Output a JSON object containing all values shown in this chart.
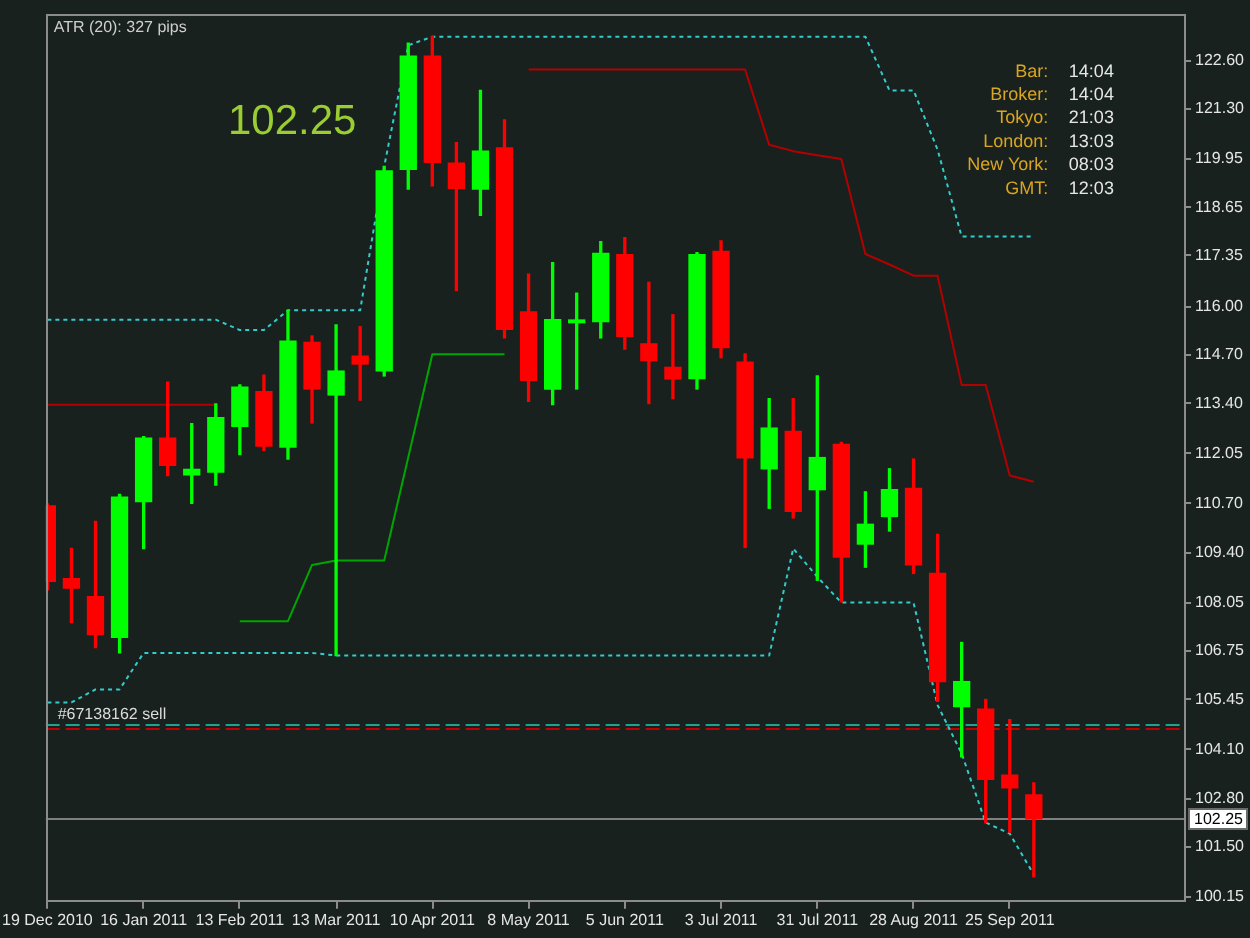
{
  "chart_data": {
    "type": "candlestick",
    "x": [
      "2010-12-19",
      "2010-12-26",
      "2011-01-02",
      "2011-01-09",
      "2011-01-16",
      "2011-01-23",
      "2011-01-30",
      "2011-02-06",
      "2011-02-13",
      "2011-02-20",
      "2011-02-27",
      "2011-03-06",
      "2011-03-13",
      "2011-03-20",
      "2011-03-27",
      "2011-04-03",
      "2011-04-10",
      "2011-04-17",
      "2011-04-24",
      "2011-05-01",
      "2011-05-08",
      "2011-05-15",
      "2011-05-22",
      "2011-05-29",
      "2011-06-05",
      "2011-06-12",
      "2011-06-19",
      "2011-06-26",
      "2011-07-03",
      "2011-07-10",
      "2011-07-17",
      "2011-07-24",
      "2011-07-31",
      "2011-08-07",
      "2011-08-14",
      "2011-08-21",
      "2011-08-28",
      "2011-09-04",
      "2011-09-11",
      "2011-09-18",
      "2011-09-25",
      "2011-10-02"
    ],
    "ohlc": [
      [
        110.64,
        110.7,
        108.39,
        108.62
      ],
      [
        108.69,
        109.5,
        107.51,
        108.44
      ],
      [
        108.21,
        110.23,
        106.84,
        107.19
      ],
      [
        107.12,
        110.95,
        106.7,
        110.88
      ],
      [
        110.76,
        112.5,
        109.5,
        112.46
      ],
      [
        112.46,
        113.96,
        111.46,
        111.73
      ],
      [
        111.48,
        112.85,
        110.71,
        111.62
      ],
      [
        111.55,
        113.38,
        111.2,
        113.01
      ],
      [
        112.78,
        113.89,
        112.02,
        113.83
      ],
      [
        113.71,
        114.15,
        112.13,
        112.25
      ],
      [
        112.22,
        115.89,
        111.9,
        115.06
      ],
      [
        115.03,
        115.2,
        112.87,
        113.78
      ],
      [
        113.62,
        115.5,
        106.63,
        114.26
      ],
      [
        114.66,
        115.45,
        113.48,
        114.45
      ],
      [
        114.27,
        119.75,
        114.13,
        119.63
      ],
      [
        119.67,
        123.06,
        119.14,
        122.71
      ],
      [
        122.71,
        123.23,
        119.23,
        119.86
      ],
      [
        119.84,
        120.39,
        116.42,
        119.16
      ],
      [
        119.14,
        121.79,
        118.44,
        120.16
      ],
      [
        120.25,
        121.0,
        115.15,
        115.38
      ],
      [
        115.85,
        116.86,
        113.45,
        114.01
      ],
      [
        113.78,
        117.17,
        113.36,
        115.64
      ],
      [
        115.56,
        116.35,
        113.78,
        115.63
      ],
      [
        115.59,
        117.73,
        115.15,
        117.42
      ],
      [
        117.38,
        117.84,
        114.85,
        115.19
      ],
      [
        114.99,
        116.64,
        113.39,
        114.54
      ],
      [
        114.36,
        115.77,
        113.52,
        114.05
      ],
      [
        114.06,
        117.44,
        113.78,
        117.38
      ],
      [
        117.47,
        117.75,
        114.62,
        114.89
      ],
      [
        114.5,
        114.72,
        109.53,
        111.93
      ],
      [
        111.64,
        113.52,
        110.58,
        112.73
      ],
      [
        112.64,
        113.52,
        110.32,
        110.5
      ],
      [
        111.08,
        114.13,
        108.65,
        111.94
      ],
      [
        112.29,
        112.35,
        108.07,
        109.27
      ],
      [
        109.62,
        111.02,
        109.0,
        110.15
      ],
      [
        110.36,
        111.64,
        109.97,
        111.08
      ],
      [
        111.11,
        111.9,
        108.83,
        109.06
      ],
      [
        108.83,
        109.88,
        105.4,
        105.93
      ],
      [
        105.26,
        106.98,
        103.91,
        105.93
      ],
      [
        105.19,
        105.45,
        102.15,
        103.31
      ],
      [
        103.42,
        104.91,
        101.89,
        103.08
      ],
      [
        102.89,
        103.21,
        100.69,
        102.25
      ]
    ],
    "colors": [
      "#ff0000",
      "#ff0000",
      "#ff0000",
      "#00ff00",
      "#00ff00",
      "#ff0000",
      "#00ff00",
      "#00ff00",
      "#00ff00",
      "#ff0000",
      "#00ff00",
      "#ff0000",
      "#00ff00",
      "#ff0000",
      "#00ff00",
      "#00ff00",
      "#ff0000",
      "#ff0000",
      "#00ff00",
      "#ff0000",
      "#ff0000",
      "#00ff00",
      "#00ff00",
      "#00ff00",
      "#ff0000",
      "#ff0000",
      "#ff0000",
      "#00ff00",
      "#ff0000",
      "#ff0000",
      "#00ff00",
      "#ff0000",
      "#00ff00",
      "#ff0000",
      "#00ff00",
      "#00ff00",
      "#ff0000",
      "#ff0000",
      "#00ff00",
      "#ff0000",
      "#ff0000",
      "#ff0000"
    ],
    "series": [
      {
        "type": "line",
        "color": "#33cccc",
        "line_style": "dotted",
        "values": [
          115.64,
          115.64,
          115.64,
          115.64,
          115.64,
          115.64,
          115.64,
          115.64,
          115.36,
          115.36,
          115.89,
          115.89,
          115.89,
          115.89,
          119.75,
          123.0,
          123.23,
          123.23,
          123.23,
          123.23,
          123.23,
          123.23,
          123.23,
          123.23,
          123.23,
          123.23,
          123.23,
          123.23,
          123.23,
          123.23,
          123.23,
          123.23,
          123.23,
          123.23,
          123.23,
          121.79,
          121.79,
          120.2,
          117.87,
          117.87,
          117.87,
          117.87
        ]
      },
      {
        "type": "line",
        "color": "#33cccc",
        "line_style": "dotted",
        "values": [
          105.37,
          105.37,
          105.72,
          105.72,
          106.7,
          106.7,
          106.7,
          106.7,
          106.7,
          106.7,
          106.7,
          106.7,
          106.63,
          106.63,
          106.63,
          106.63,
          106.63,
          106.63,
          106.63,
          106.63,
          106.63,
          106.63,
          106.63,
          106.63,
          106.63,
          106.63,
          106.63,
          106.63,
          106.63,
          106.63,
          106.63,
          109.5,
          108.74,
          108.05,
          108.05,
          108.05,
          108.05,
          105.3,
          104.0,
          102.15,
          101.85,
          100.75
        ]
      },
      {
        "type": "line",
        "color": "#b30000",
        "line_style": "solid",
        "values": [
          113.36,
          113.36,
          113.36,
          113.36,
          113.36,
          113.36,
          113.36,
          113.36,
          null,
          null,
          null,
          null,
          null,
          null,
          null,
          null,
          null,
          null,
          null,
          null,
          122.35,
          122.35,
          122.35,
          122.35,
          122.35,
          122.35,
          122.35,
          122.35,
          122.35,
          122.35,
          120.33,
          120.16,
          120.05,
          119.95,
          117.4,
          117.12,
          116.82,
          116.82,
          113.89,
          113.89,
          111.46,
          111.29
        ]
      },
      {
        "type": "line",
        "color": "#00a600",
        "line_style": "solid",
        "values": [
          null,
          null,
          null,
          null,
          null,
          null,
          null,
          null,
          107.55,
          107.55,
          107.55,
          109.06,
          109.18,
          109.18,
          109.18,
          111.95,
          114.71,
          114.71,
          114.71,
          114.71,
          null,
          null,
          null,
          null,
          null,
          null,
          null,
          null,
          null,
          null,
          null,
          null,
          null,
          null,
          null,
          null,
          null,
          null,
          null,
          null,
          null,
          null
        ]
      }
    ],
    "xlim": [
      "2010-12-18T12:00",
      "2011-11-15"
    ],
    "xticks": [
      {
        "value": "2010-12-19",
        "label": "19 Dec 2010"
      },
      {
        "value": "2011-01-16",
        "label": "16 Jan 2011"
      },
      {
        "value": "2011-02-13",
        "label": "13 Feb 2011"
      },
      {
        "value": "2011-03-13",
        "label": "13 Mar 2011"
      },
      {
        "value": "2011-04-10",
        "label": "10 Apr 2011"
      },
      {
        "value": "2011-05-08",
        "label": "8 May 2011"
      },
      {
        "value": "2011-06-05",
        "label": "5 Jun 2011"
      },
      {
        "value": "2011-07-03",
        "label": "3 Jul 2011"
      },
      {
        "value": "2011-07-31",
        "label": "31 Jul 2011"
      },
      {
        "value": "2011-08-28",
        "label": "28 Aug 2011"
      },
      {
        "value": "2011-09-25",
        "label": "25 Sep 2011"
      }
    ],
    "ylim": [
      100.05,
      123.85
    ],
    "yticks": [
      100.15,
      {
        "value": 101.5,
        "label": "101.50"
      },
      {
        "value": 102.8,
        "label": "102.80"
      },
      {
        "value": 104.1,
        "label": "104.10"
      },
      105.45,
      106.75,
      108.05,
      {
        "value": 109.4,
        "label": "109.40"
      },
      {
        "value": 110.7,
        "label": "110.70"
      },
      112.05,
      {
        "value": 113.4,
        "label": "113.40"
      },
      {
        "value": 114.7,
        "label": "114.70"
      },
      {
        "value": 116,
        "label": "116.00"
      },
      117.35,
      118.65,
      119.95,
      {
        "value": 121.3,
        "label": "121.30"
      },
      {
        "value": 122.6,
        "label": "122.60"
      }
    ],
    "ref_lines": [
      {
        "axis": "y",
        "value": 104.78,
        "label": "#67138162 sell",
        "color": "#20a090",
        "line_style": "dashed"
      },
      {
        "axis": "y",
        "value": 104.67,
        "color": "#c00000",
        "line_style": "dashed"
      },
      {
        "axis": "y",
        "value": 102.25,
        "label": "102.25",
        "color": "#808080",
        "line_style": "solid"
      }
    ],
    "annotations": [
      "ATR (20): 327 pips",
      "102.25",
      "Bar:",
      "14:04",
      "Broker:",
      "14:04",
      "Tokyo:",
      "21:03",
      "London:",
      "13:03",
      "New York:",
      "08:03",
      "GMT:",
      "12:03"
    ],
    "grid": false,
    "legend": false
  }
}
